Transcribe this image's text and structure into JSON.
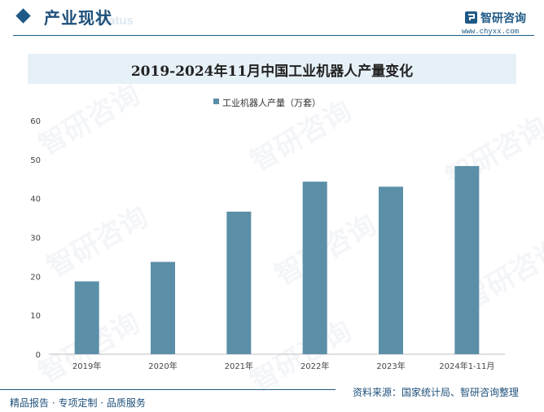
{
  "header": {
    "section_title": "产业现状",
    "section_ghost": "Status",
    "logo_name": "智研咨询",
    "logo_url": "www.chyxx.com"
  },
  "footer": {
    "left": "精品报告 · 专项定制 · 品质服务",
    "right": "资料来源：国家统计局、智研咨询整理"
  },
  "watermark": "智研咨询",
  "colors": {
    "bar": "#5b8fa8",
    "brand": "#1f5a86",
    "title_band": "#e6f0f7"
  },
  "chart_data": {
    "type": "bar",
    "title": "2019-2024年11月中国工业机器人产量变化",
    "categories": [
      "2019年",
      "2020年",
      "2021年",
      "2022年",
      "2023年",
      "2024年1-11月"
    ],
    "series": [
      {
        "name": "工业机器人产量（万套）",
        "values": [
          18.7,
          23.7,
          36.6,
          44.3,
          43.0,
          48.3
        ]
      }
    ],
    "ylim": [
      0,
      60
    ],
    "yticks": [
      0,
      10,
      20,
      30,
      40,
      50,
      60
    ],
    "grid": false,
    "legend": "top-center"
  }
}
